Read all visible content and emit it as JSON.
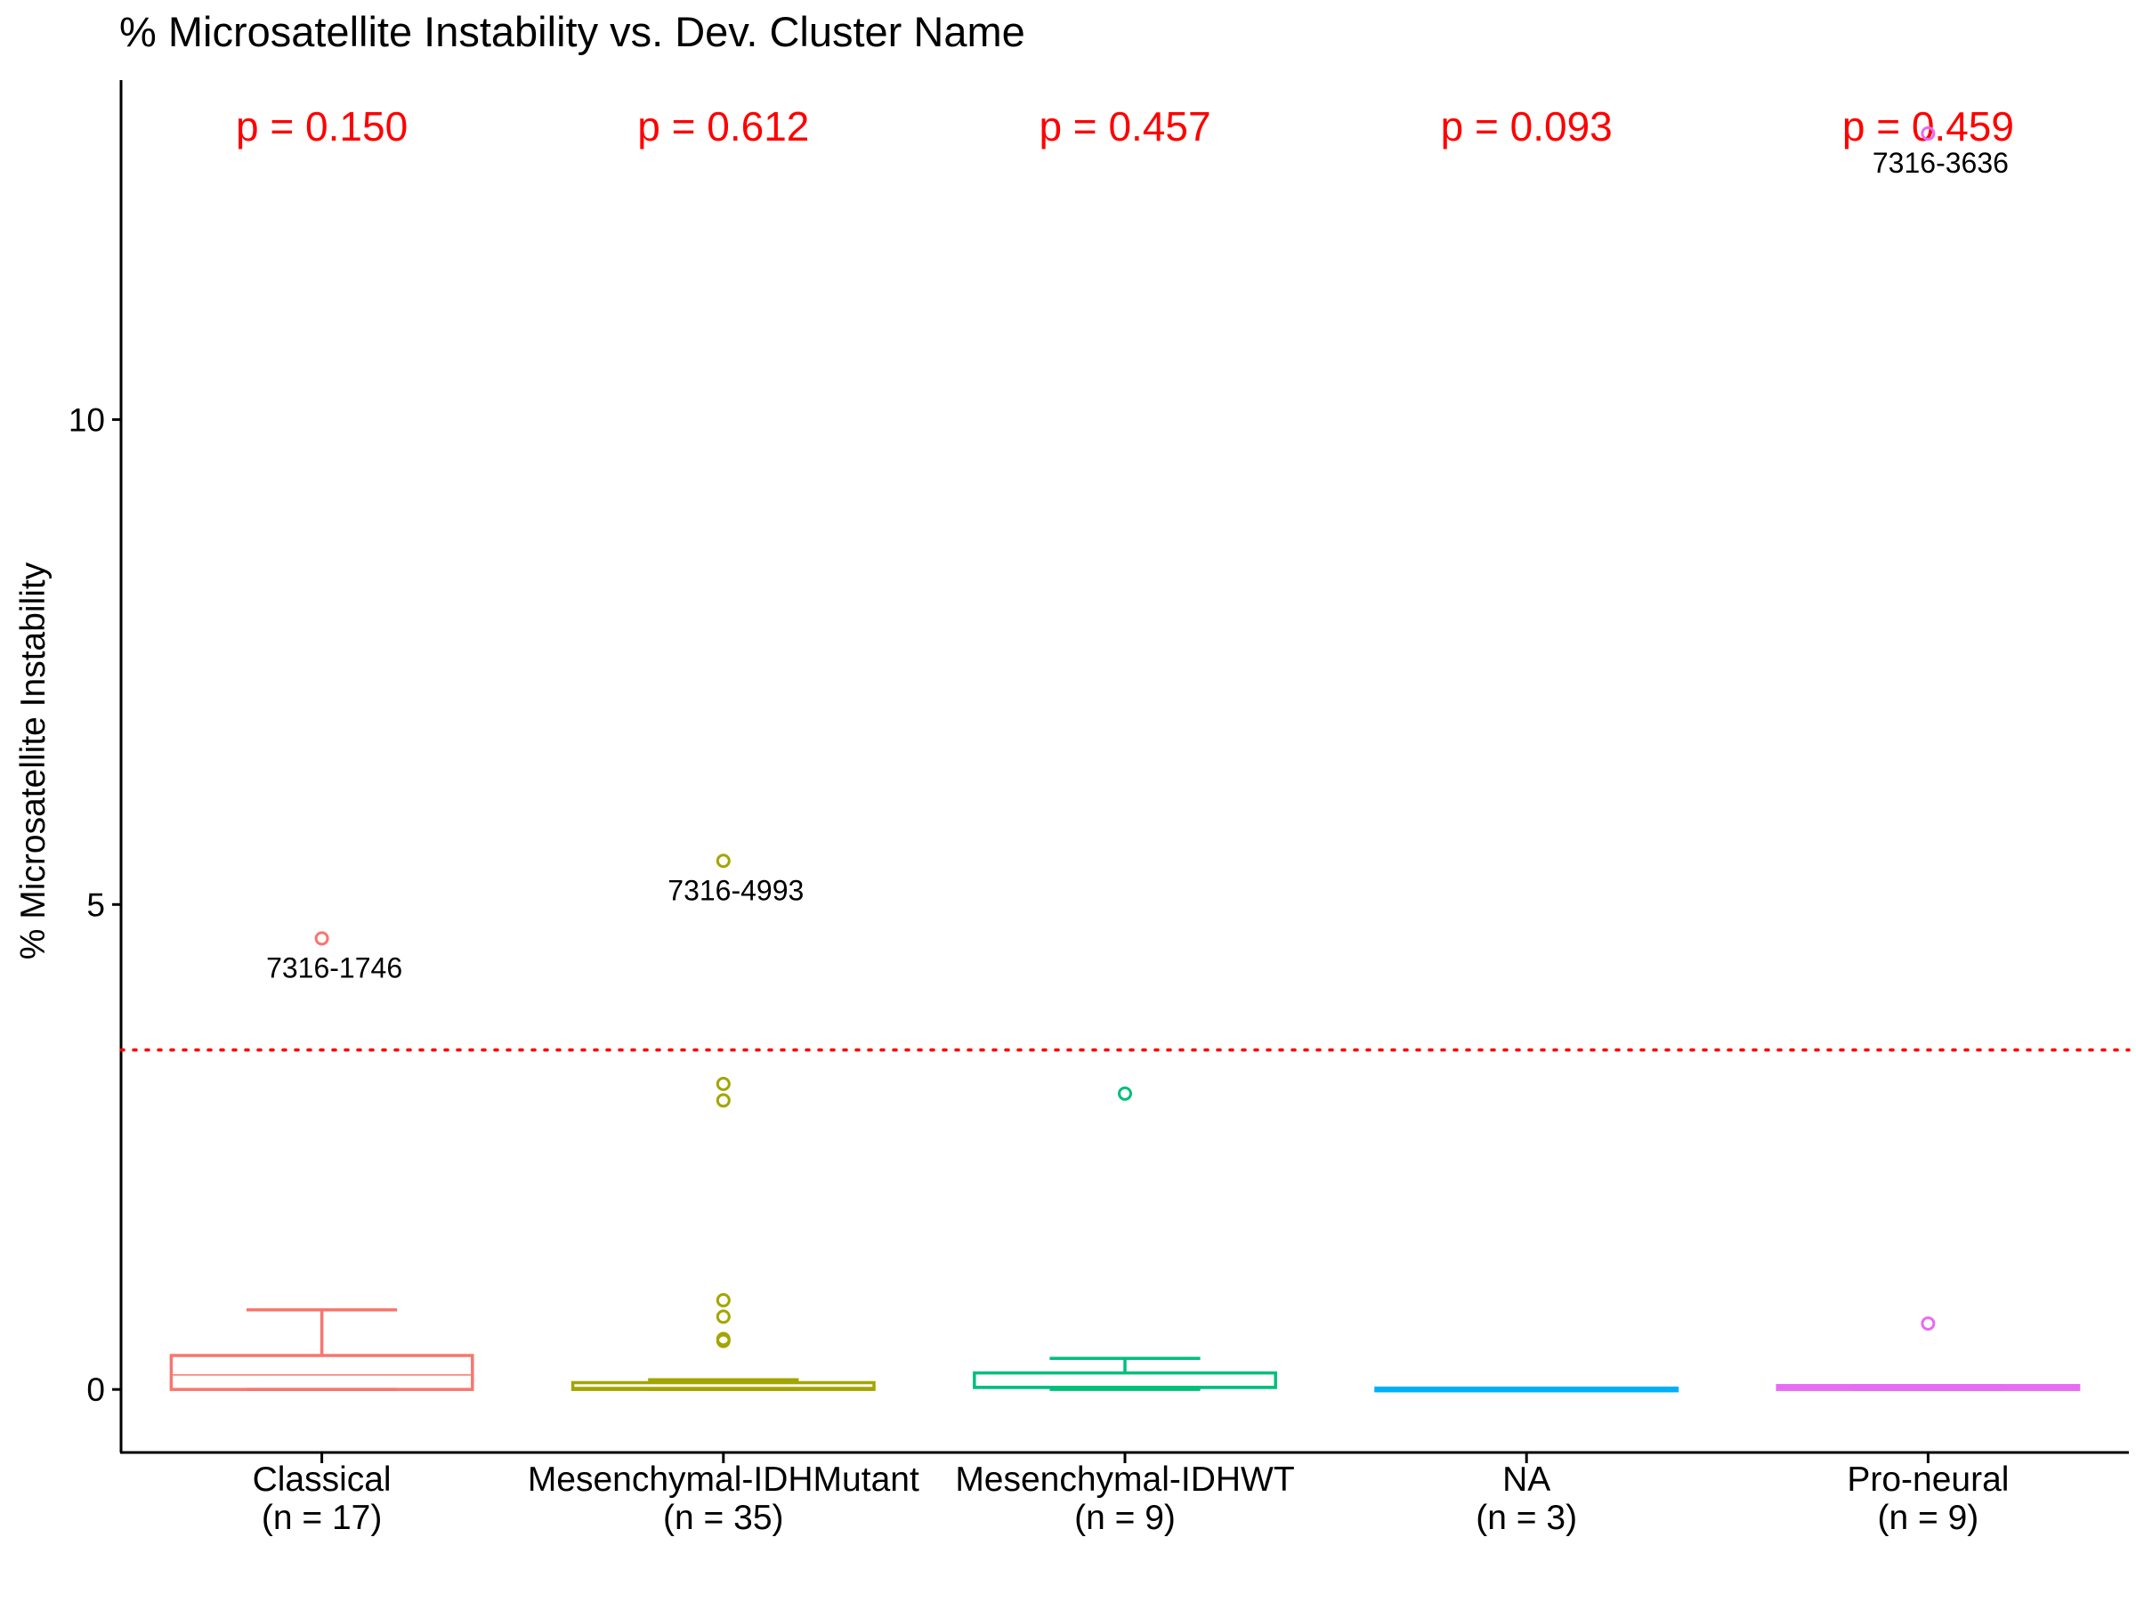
{
  "chart_data": {
    "type": "boxplot",
    "title": "% Microsatellite Instability vs. Dev. Cluster Name",
    "xlabel": "",
    "ylabel": "% Microsatellite Instability",
    "ylim": [
      -0.65,
      13.5
    ],
    "yticks": [
      0,
      5,
      10
    ],
    "grid": false,
    "legend": "none",
    "threshold": {
      "value": 3.5,
      "color": "#ff0000",
      "style": "dotted"
    },
    "pvalue_color": "#ff0000",
    "categories": [
      {
        "name": "Classical",
        "n_label": "(n = 17)",
        "color": "#F8766D",
        "min": 0.0,
        "q1": 0.0,
        "median": 0.15,
        "q3": 0.35,
        "max": 0.82,
        "outliers": [
          4.65
        ],
        "outlier_labels": [
          {
            "value": 4.65,
            "text": "7316-1746"
          }
        ],
        "p_value": "p = 0.150"
      },
      {
        "name": "Mesenchymal-IDHMutant",
        "n_label": "(n = 35)",
        "color": "#A3A500",
        "min": 0.0,
        "q1": 0.0,
        "median": 0.02,
        "q3": 0.07,
        "max": 0.1,
        "outliers": [
          5.45,
          3.15,
          2.98,
          0.92,
          0.75,
          0.52,
          0.5
        ],
        "outlier_labels": [
          {
            "value": 5.45,
            "text": "7316-4993"
          }
        ],
        "p_value": "p = 0.612"
      },
      {
        "name": "Mesenchymal-IDHWT",
        "n_label": "(n = 9)",
        "color": "#00BF7D",
        "min": 0.0,
        "q1": 0.02,
        "median": 0.03,
        "q3": 0.17,
        "max": 0.32,
        "outliers": [
          3.05
        ],
        "outlier_labels": [],
        "p_value": "p = 0.457"
      },
      {
        "name": "NA",
        "n_label": "(n = 3)",
        "color": "#00B0F6",
        "min": 0.0,
        "q1": 0.0,
        "median": 0.0,
        "q3": 0.0,
        "max": 0.0,
        "outliers": [],
        "outlier_labels": [],
        "p_value": "p = 0.093"
      },
      {
        "name": "Pro-neural",
        "n_label": "(n = 9)",
        "color": "#E76BF3",
        "min": 0.0,
        "q1": 0.0,
        "median": 0.02,
        "q3": 0.04,
        "max": 0.04,
        "outliers": [
          12.95,
          0.68
        ],
        "outlier_labels": [
          {
            "value": 12.95,
            "text": "7316-3636"
          }
        ],
        "p_value": "p = 0.459"
      }
    ]
  }
}
